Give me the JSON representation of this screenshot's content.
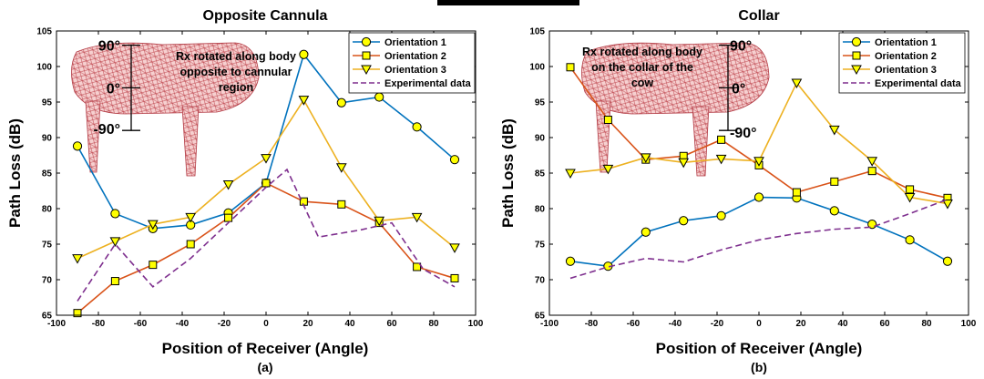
{
  "chart_data": [
    {
      "type": "line",
      "title": "Opposite Cannula",
      "xlabel": "Position of Receiver  (Angle)",
      "ylabel": "Path Loss (dB)",
      "sublabel": "(a)",
      "xlim": [
        -100,
        100
      ],
      "ylim": [
        65,
        105
      ],
      "xticks": [
        -100,
        -80,
        -60,
        -40,
        -20,
        0,
        20,
        40,
        60,
        80,
        100
      ],
      "yticks": [
        65,
        70,
        75,
        80,
        85,
        90,
        95,
        100,
        105
      ],
      "legend_position": "top-right",
      "annotation": {
        "text_lines": [
          "Rx rotated along body",
          "opposite to cannular",
          "region"
        ],
        "scale_labels": [
          "90°",
          "0°",
          "-90°"
        ]
      },
      "series": [
        {
          "name": "Orientation 1",
          "color": "#0072BD",
          "marker": "circle",
          "style": "solid",
          "x": [
            -90,
            -72,
            -54,
            -36,
            -18,
            0,
            18,
            36,
            54,
            72,
            90
          ],
          "y": [
            88.8,
            79.3,
            77.2,
            77.7,
            79.4,
            83.6,
            101.7,
            94.9,
            95.7,
            91.5,
            86.9
          ]
        },
        {
          "name": "Orientation 2",
          "color": "#D95319",
          "marker": "square",
          "style": "solid",
          "x": [
            -90,
            -72,
            -54,
            -36,
            -18,
            0,
            18,
            36,
            54,
            72,
            90
          ],
          "y": [
            65.3,
            69.8,
            72.1,
            75.0,
            78.7,
            83.6,
            81.0,
            80.6,
            78.0,
            71.8,
            70.2
          ]
        },
        {
          "name": "Orientation 3",
          "color": "#EDB120",
          "marker": "triangle-down",
          "style": "solid",
          "x": [
            -90,
            -72,
            -54,
            -36,
            -18,
            0,
            18,
            36,
            54,
            72,
            90
          ],
          "y": [
            73.0,
            75.4,
            77.8,
            78.8,
            83.4,
            87.1,
            95.3,
            85.8,
            78.3,
            78.8,
            74.5
          ]
        },
        {
          "name": "Experimental data",
          "color": "#7E2F8E",
          "marker": "none",
          "style": "dashed",
          "x": [
            -90,
            -72,
            -54,
            -36,
            -18,
            0,
            10,
            25,
            45,
            60,
            75,
            90
          ],
          "y": [
            67,
            75,
            69,
            73,
            78,
            83,
            85.5,
            76,
            77,
            78,
            71.5,
            69
          ]
        }
      ]
    },
    {
      "type": "line",
      "title": "Collar",
      "xlabel": "Position of Receiver  (Angle)",
      "ylabel": "Path Loss (dB)",
      "sublabel": "(b)",
      "xlim": [
        -100,
        100
      ],
      "ylim": [
        65,
        105
      ],
      "xticks": [
        -100,
        -80,
        -60,
        -40,
        -20,
        0,
        20,
        40,
        60,
        80,
        100
      ],
      "yticks": [
        65,
        70,
        75,
        80,
        85,
        90,
        95,
        100,
        105
      ],
      "legend_position": "top-right",
      "annotation": {
        "text_lines": [
          "Rx rotated along body",
          "on the collar of the",
          "cow"
        ],
        "scale_labels": [
          "90°",
          "0°",
          "-90°"
        ]
      },
      "series": [
        {
          "name": "Orientation 1",
          "color": "#0072BD",
          "marker": "circle",
          "style": "solid",
          "x": [
            -90,
            -72,
            -54,
            -36,
            -18,
            0,
            18,
            36,
            54,
            72,
            90
          ],
          "y": [
            72.6,
            71.9,
            76.7,
            78.3,
            79.0,
            81.6,
            81.5,
            79.7,
            77.8,
            75.6,
            72.6
          ]
        },
        {
          "name": "Orientation 2",
          "color": "#D95319",
          "marker": "square",
          "style": "solid",
          "x": [
            -90,
            -72,
            -54,
            -36,
            -18,
            0,
            18,
            36,
            54,
            72,
            90
          ],
          "y": [
            99.9,
            92.5,
            86.9,
            87.4,
            89.7,
            86.1,
            82.3,
            83.8,
            85.3,
            82.7,
            81.5
          ]
        },
        {
          "name": "Orientation 3",
          "color": "#EDB120",
          "marker": "triangle-down",
          "style": "solid",
          "x": [
            -90,
            -72,
            -54,
            -36,
            -18,
            0,
            18,
            36,
            54,
            72,
            90
          ],
          "y": [
            85.0,
            85.6,
            87.2,
            86.5,
            87.0,
            86.7,
            97.7,
            91.1,
            86.7,
            81.6,
            80.7
          ]
        },
        {
          "name": "Experimental data",
          "color": "#7E2F8E",
          "marker": "none",
          "style": "dashed",
          "x": [
            -90,
            -72,
            -54,
            -36,
            -18,
            0,
            18,
            36,
            54,
            72,
            90
          ],
          "y": [
            70.2,
            71.8,
            73.0,
            72.5,
            74.2,
            75.6,
            76.5,
            77.1,
            77.4,
            79.3,
            81.3
          ]
        }
      ]
    }
  ]
}
